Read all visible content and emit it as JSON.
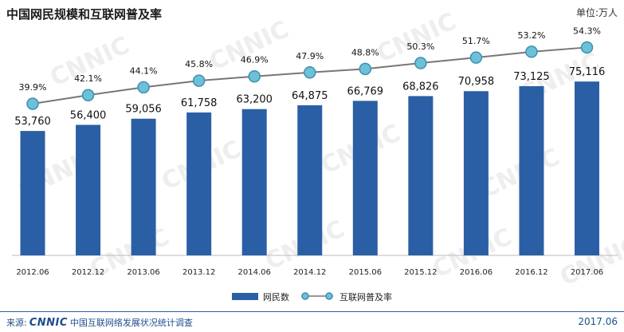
{
  "title": "中国网民规模和互联网普及率",
  "unit": "单位:万人",
  "watermark": "CNNIC",
  "footer": {
    "source_prefix": "来源:",
    "source_logo": "CNNIC",
    "source_name": "中国互联网络发展状况统计调查",
    "date": "2017.06"
  },
  "colors": {
    "bar": "#2a5fa5",
    "line": "#777777",
    "marker_fill": "#6cc0d8",
    "marker_stroke": "#3e8fb0"
  },
  "chart_data": {
    "type": "bar",
    "categories": [
      "2012.06",
      "2012.12",
      "2013.06",
      "2013.12",
      "2014.06",
      "2014.12",
      "2015.06",
      "2015.12",
      "2016.06",
      "2016.12",
      "2017.06"
    ],
    "series": [
      {
        "name": "网民数",
        "type": "bar",
        "values": [
          53760,
          56400,
          59056,
          61758,
          63200,
          64875,
          66769,
          68826,
          70958,
          73125,
          75116
        ],
        "labels": [
          "53,760",
          "56,400",
          "59,056",
          "61,758",
          "63,200",
          "64,875",
          "66,769",
          "68,826",
          "70,958",
          "73,125",
          "75,116"
        ]
      },
      {
        "name": "互联网普及率",
        "type": "line",
        "values": [
          39.9,
          42.1,
          44.1,
          45.8,
          46.9,
          47.9,
          48.8,
          50.3,
          51.7,
          53.2,
          54.3
        ],
        "labels": [
          "39.9%",
          "42.1%",
          "44.1%",
          "45.8%",
          "46.9%",
          "47.9%",
          "48.8%",
          "50.3%",
          "51.7%",
          "53.2%",
          "54.3%"
        ]
      }
    ],
    "grid": false,
    "legend_position": "bottom"
  }
}
